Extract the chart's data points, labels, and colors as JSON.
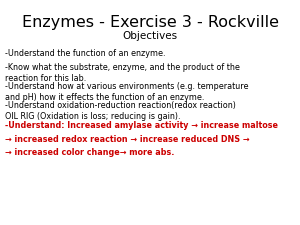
{
  "title": "Enzymes - Exercise 3 - Rockville",
  "subtitle": "Objectives",
  "background_color": "#ffffff",
  "title_color": "#000000",
  "subtitle_color": "#000000",
  "body_color": "#000000",
  "highlight_color": "#cc0000",
  "title_fontsize": 11.5,
  "subtitle_fontsize": 7.5,
  "body_fontsize": 5.8,
  "body_lines": [
    "-Understand the function of an enzyme.",
    "-Know what the substrate, enzyme, and the product of the\nreaction for this lab.",
    "-Understand how at various environments (e.g. temperature\nand pH) how it effects the function of an enzyme.",
    "-Understand oxidation-reduction reaction(redox reaction)\nOIL RIG (Oxidation is loss; reducing is gain)."
  ],
  "highlight_line1": "-Understand: Increased amylase activity → increase maltose",
  "highlight_line2": "→ increased redox reaction → increase reduced DNS →",
  "highlight_line3": "→ increased color change→ more abs."
}
